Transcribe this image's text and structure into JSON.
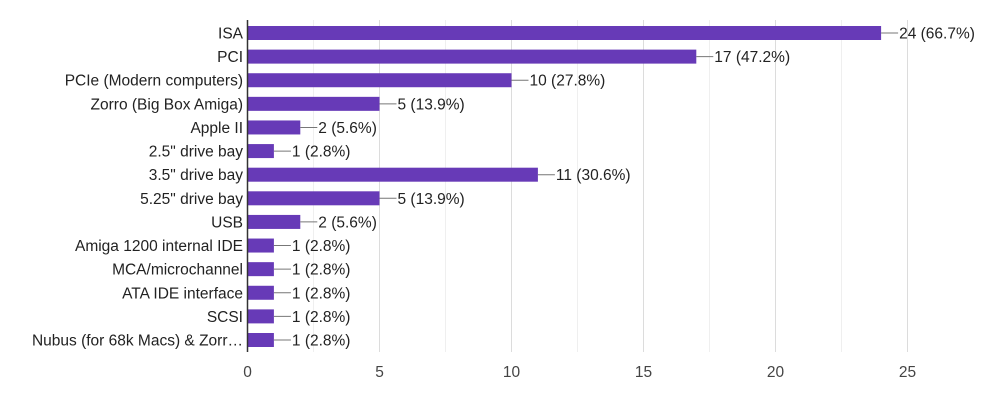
{
  "chart_data": {
    "type": "bar",
    "orientation": "horizontal",
    "title": "",
    "xlabel": "",
    "ylabel": "",
    "categories": [
      "ISA",
      "PCI",
      "PCIe (Modern computers)",
      "Zorro (Big Box Amiga)",
      "Apple II",
      "2.5\" drive bay",
      "3.5\" drive bay",
      "5.25\" drive bay",
      "USB",
      "Amiga 1200 internal IDE",
      "MCA/microchannel",
      "ATA IDE interface",
      "SCSI",
      "Nubus (for 68k Macs) & Zorr…"
    ],
    "values": [
      24,
      17,
      10,
      5,
      2,
      1,
      11,
      5,
      2,
      1,
      1,
      1,
      1,
      1
    ],
    "data_labels": [
      "24 (66.7%)",
      "17 (47.2%)",
      "10 (27.8%)",
      "5 (13.9%)",
      "2 (5.6%)",
      "1 (2.8%)",
      "11 (30.6%)",
      "5 (13.9%)",
      "2 (5.6%)",
      "1 (2.8%)",
      "1 (2.8%)",
      "1 (2.8%)",
      "1 (2.8%)",
      "1 (2.8%)"
    ],
    "xlim": [
      0,
      25
    ],
    "xticks": [
      "0",
      "5",
      "10",
      "15",
      "20",
      "25"
    ],
    "grid": true,
    "color": "#673ab7"
  }
}
